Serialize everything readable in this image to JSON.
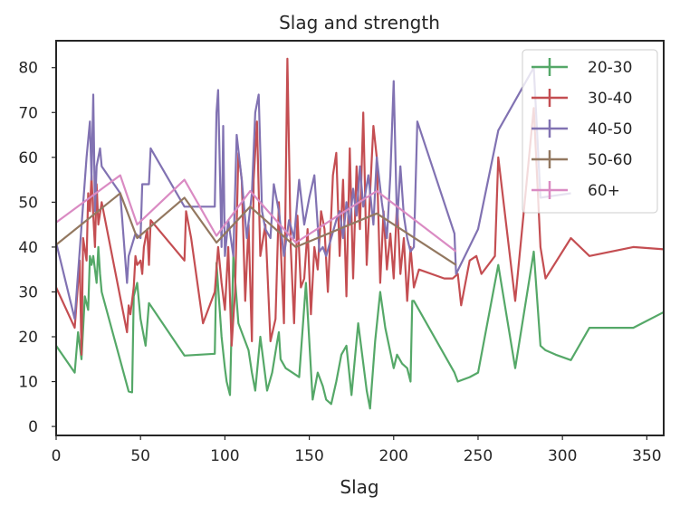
{
  "chart_data": {
    "type": "line",
    "title": "Slag and strength",
    "xlabel": "Slag",
    "ylabel": "",
    "xlim": [
      0,
      360
    ],
    "ylim": [
      -2,
      86
    ],
    "xticks": [
      0,
      50,
      100,
      150,
      200,
      250,
      300,
      350
    ],
    "yticks": [
      0,
      10,
      20,
      30,
      40,
      50,
      60,
      70,
      80
    ],
    "grid": false,
    "legend_position": "top-right",
    "series": [
      {
        "name": "20-30",
        "color": "#55a868",
        "points": [
          [
            0,
            18
          ],
          [
            11,
            12
          ],
          [
            13,
            21
          ],
          [
            15,
            15
          ],
          [
            17,
            29
          ],
          [
            19,
            26
          ],
          [
            20,
            38
          ],
          [
            21,
            36
          ],
          [
            22,
            38
          ],
          [
            24,
            32
          ],
          [
            25,
            40
          ],
          [
            26,
            34
          ],
          [
            27,
            30
          ],
          [
            43,
            7.8
          ],
          [
            45,
            7.6
          ],
          [
            46,
            29
          ],
          [
            48,
            32
          ],
          [
            50,
            24
          ],
          [
            53,
            18
          ],
          [
            55,
            27.5
          ],
          [
            76,
            15.8
          ],
          [
            94,
            16.2
          ],
          [
            95,
            36.5
          ],
          [
            98,
            20
          ],
          [
            100,
            13
          ],
          [
            101,
            10
          ],
          [
            103,
            7
          ],
          [
            105,
            38
          ],
          [
            108,
            23
          ],
          [
            111,
            20
          ],
          [
            114,
            17
          ],
          [
            116,
            12
          ],
          [
            118,
            8
          ],
          [
            121,
            20
          ],
          [
            125,
            8
          ],
          [
            128,
            12
          ],
          [
            131,
            19
          ],
          [
            132,
            21
          ],
          [
            133,
            15
          ],
          [
            136,
            13
          ],
          [
            140,
            12
          ],
          [
            144,
            11
          ],
          [
            148,
            32
          ],
          [
            152,
            6
          ],
          [
            155,
            12
          ],
          [
            158,
            9
          ],
          [
            160,
            6
          ],
          [
            163,
            5
          ],
          [
            166,
            10
          ],
          [
            169,
            16
          ],
          [
            172,
            18
          ],
          [
            175,
            7
          ],
          [
            179,
            23
          ],
          [
            184,
            8
          ],
          [
            186,
            4
          ],
          [
            189,
            19
          ],
          [
            192,
            30
          ],
          [
            195,
            22
          ],
          [
            200,
            13
          ],
          [
            202,
            16
          ],
          [
            205,
            14
          ],
          [
            208,
            13
          ],
          [
            210,
            10
          ],
          [
            211,
            28
          ],
          [
            212,
            28
          ],
          [
            236,
            12
          ],
          [
            238,
            10
          ],
          [
            245,
            11
          ],
          [
            250,
            12
          ],
          [
            262,
            36
          ],
          [
            272,
            13
          ],
          [
            283,
            39
          ],
          [
            287,
            18
          ],
          [
            290,
            17
          ],
          [
            296,
            16
          ],
          [
            305,
            14.8
          ],
          [
            316,
            22
          ],
          [
            342,
            22
          ],
          [
            360,
            25.5
          ]
        ]
      },
      {
        "name": "30-40",
        "color": "#c44e52",
        "points": [
          [
            0,
            31
          ],
          [
            11,
            22
          ],
          [
            14,
            37
          ],
          [
            15,
            16
          ],
          [
            16,
            42
          ],
          [
            18,
            37
          ],
          [
            19,
            52
          ],
          [
            20,
            48
          ],
          [
            21,
            56
          ],
          [
            22,
            47
          ],
          [
            23,
            40
          ],
          [
            24,
            54
          ],
          [
            25,
            45
          ],
          [
            27,
            50
          ],
          [
            42,
            21
          ],
          [
            43,
            27
          ],
          [
            44,
            25
          ],
          [
            46,
            31
          ],
          [
            47,
            38
          ],
          [
            48,
            36
          ],
          [
            50,
            37
          ],
          [
            51,
            34
          ],
          [
            52,
            40
          ],
          [
            54,
            44
          ],
          [
            55,
            36
          ],
          [
            56,
            46
          ],
          [
            76,
            37
          ],
          [
            77,
            48
          ],
          [
            80,
            42
          ],
          [
            87,
            23
          ],
          [
            94,
            30
          ],
          [
            96,
            40
          ],
          [
            98,
            32
          ],
          [
            100,
            26
          ],
          [
            102,
            40
          ],
          [
            104,
            18
          ],
          [
            106,
            30
          ],
          [
            108,
            61
          ],
          [
            110,
            55
          ],
          [
            112,
            28
          ],
          [
            114,
            45
          ],
          [
            116,
            19
          ],
          [
            117,
            55
          ],
          [
            119,
            68
          ],
          [
            121,
            38
          ],
          [
            124,
            45
          ],
          [
            127,
            19
          ],
          [
            130,
            24
          ],
          [
            132,
            50
          ],
          [
            135,
            23
          ],
          [
            137,
            82
          ],
          [
            139,
            40
          ],
          [
            141,
            23
          ],
          [
            143,
            47
          ],
          [
            145,
            31
          ],
          [
            147,
            33
          ],
          [
            149,
            44
          ],
          [
            151,
            25
          ],
          [
            153,
            40
          ],
          [
            155,
            35
          ],
          [
            157,
            48
          ],
          [
            159,
            44
          ],
          [
            161,
            30
          ],
          [
            164,
            56
          ],
          [
            166,
            61
          ],
          [
            168,
            38
          ],
          [
            170,
            55
          ],
          [
            172,
            29
          ],
          [
            174,
            62
          ],
          [
            176,
            33
          ],
          [
            178,
            58
          ],
          [
            180,
            44
          ],
          [
            182,
            70
          ],
          [
            184,
            36
          ],
          [
            186,
            52
          ],
          [
            188,
            67
          ],
          [
            190,
            60
          ],
          [
            192,
            32
          ],
          [
            194,
            48
          ],
          [
            196,
            35
          ],
          [
            198,
            43
          ],
          [
            200,
            33
          ],
          [
            202,
            50
          ],
          [
            204,
            34
          ],
          [
            206,
            42
          ],
          [
            208,
            28
          ],
          [
            210,
            40
          ],
          [
            212,
            31
          ],
          [
            215,
            35
          ],
          [
            230,
            33
          ],
          [
            235,
            33
          ],
          [
            238,
            34
          ],
          [
            240,
            27
          ],
          [
            245,
            37
          ],
          [
            249,
            38
          ],
          [
            252,
            34
          ],
          [
            260,
            38
          ],
          [
            262,
            60
          ],
          [
            272,
            28
          ],
          [
            283,
            71
          ],
          [
            287,
            40
          ],
          [
            290,
            33
          ],
          [
            305,
            42
          ],
          [
            316,
            38
          ],
          [
            342,
            40
          ],
          [
            360,
            39.5
          ]
        ]
      },
      {
        "name": "40-50",
        "color": "#8172b2",
        "points": [
          [
            0,
            41
          ],
          [
            11,
            24
          ],
          [
            18,
            60
          ],
          [
            20,
            68
          ],
          [
            21,
            55
          ],
          [
            22,
            74
          ],
          [
            23,
            48
          ],
          [
            24,
            58
          ],
          [
            26,
            62
          ],
          [
            27,
            58
          ],
          [
            38,
            52
          ],
          [
            42,
            32
          ],
          [
            43,
            38
          ],
          [
            47,
            43
          ],
          [
            50,
            42
          ],
          [
            51,
            54
          ],
          [
            55,
            54
          ],
          [
            56,
            62
          ],
          [
            76,
            49
          ],
          [
            94,
            49
          ],
          [
            95,
            70
          ],
          [
            96,
            75
          ],
          [
            98,
            40
          ],
          [
            99,
            67
          ],
          [
            100,
            38
          ],
          [
            102,
            46
          ],
          [
            105,
            38
          ],
          [
            107,
            65
          ],
          [
            110,
            55
          ],
          [
            113,
            42
          ],
          [
            116,
            52
          ],
          [
            118,
            70
          ],
          [
            120,
            74
          ],
          [
            122,
            48
          ],
          [
            124,
            44
          ],
          [
            127,
            42
          ],
          [
            129,
            54
          ],
          [
            132,
            48
          ],
          [
            135,
            38
          ],
          [
            138,
            46
          ],
          [
            141,
            42
          ],
          [
            144,
            55
          ],
          [
            147,
            45
          ],
          [
            150,
            51
          ],
          [
            153,
            56
          ],
          [
            156,
            39
          ],
          [
            158,
            40
          ],
          [
            160,
            38
          ],
          [
            163,
            42
          ],
          [
            166,
            46
          ],
          [
            168,
            48
          ],
          [
            170,
            42
          ],
          [
            172,
            50
          ],
          [
            174,
            45
          ],
          [
            176,
            53
          ],
          [
            178,
            47
          ],
          [
            180,
            58
          ],
          [
            182,
            49
          ],
          [
            185,
            56
          ],
          [
            188,
            45
          ],
          [
            190,
            60
          ],
          [
            193,
            50
          ],
          [
            196,
            42
          ],
          [
            198,
            56
          ],
          [
            200,
            77
          ],
          [
            202,
            45
          ],
          [
            204,
            58
          ],
          [
            206,
            47
          ],
          [
            208,
            42
          ],
          [
            210,
            39
          ],
          [
            212,
            40
          ],
          [
            214,
            68
          ],
          [
            236,
            43
          ],
          [
            237,
            34
          ],
          [
            250,
            44
          ],
          [
            262,
            66
          ],
          [
            283,
            80
          ],
          [
            287,
            51
          ],
          [
            305,
            52
          ]
        ]
      },
      {
        "name": "50-60",
        "color": "#937860",
        "points": [
          [
            0,
            40.5
          ],
          [
            38,
            52
          ],
          [
            48,
            42
          ],
          [
            76,
            51
          ],
          [
            95,
            41
          ],
          [
            115,
            49
          ],
          [
            142,
            40
          ],
          [
            190,
            47.5
          ],
          [
            237,
            36
          ]
        ]
      },
      {
        "name": "60+",
        "color": "#da8bc3",
        "points": [
          [
            0,
            45.5
          ],
          [
            38,
            56
          ],
          [
            48,
            45
          ],
          [
            76,
            55
          ],
          [
            95,
            42.5
          ],
          [
            115,
            52.5
          ],
          [
            142,
            41
          ],
          [
            190,
            52.5
          ],
          [
            237,
            39
          ]
        ]
      }
    ]
  }
}
